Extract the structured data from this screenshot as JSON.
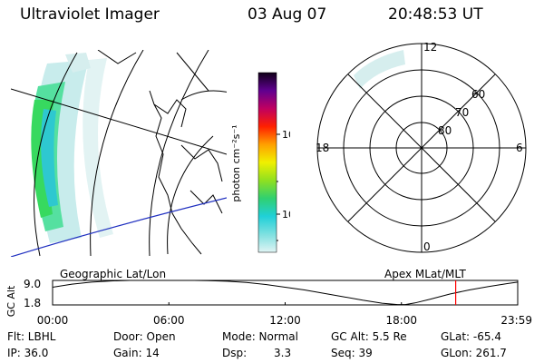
{
  "header": {
    "instrument": "Ultraviolet Imager",
    "date": "03 Aug 07",
    "time": "20:48:53 UT"
  },
  "colorbar": {
    "label": "photon cm⁻²s⁻¹",
    "ticks": [
      "100",
      "10"
    ]
  },
  "polar_plot": {
    "mlt_labels": {
      "top": "12",
      "left": "18",
      "right": "6",
      "bottom": "0"
    },
    "lat_labels": [
      "60",
      "70",
      "80"
    ]
  },
  "map_labels": {
    "left": "Geographic Lat/Lon",
    "right": "Apex MLat/MLT"
  },
  "chart_data": {
    "type": "line",
    "ylabel": "GC Alt",
    "y_ticks": [
      "9.0",
      "1.8"
    ],
    "ylim": [
      1.8,
      9.0
    ],
    "x_tick_labels": [
      "00:00",
      "06:00",
      "12:00",
      "18:00",
      "23:59"
    ],
    "series": [
      {
        "x_hours": [
          0,
          1,
          2,
          3,
          4,
          5,
          6,
          6.7,
          7.3,
          8,
          9,
          10,
          11,
          12,
          13,
          14,
          15,
          16,
          17,
          17.8,
          18.2,
          18.7,
          19.5,
          20.5,
          21.5,
          22.5,
          23.5,
          24
        ],
        "values": [
          7.0,
          7.9,
          8.5,
          8.85,
          9.0,
          9.0,
          9.0,
          9.0,
          9.0,
          8.95,
          8.75,
          8.4,
          7.8,
          7.0,
          6.2,
          5.2,
          4.2,
          3.2,
          2.3,
          1.9,
          1.9,
          2.4,
          3.5,
          5.0,
          6.2,
          7.2,
          8.1,
          8.5
        ]
      }
    ],
    "current_time_hours": 20.8,
    "colors": {
      "line": "#000000",
      "marker": "#ff0000"
    }
  },
  "status": {
    "filter": "Flt: LBHL",
    "door": "Door: Open",
    "mode": "Mode: Normal",
    "gc_alt": "GC Alt: 5.5 Re",
    "glat": "GLat: -65.4",
    "ip": "IP: 36.0",
    "gain": "Gain: 14",
    "dsp_label": "Dsp:",
    "dsp_value": "3.3",
    "seq": "Seq: 39",
    "glon": "GLon: 261.7"
  }
}
